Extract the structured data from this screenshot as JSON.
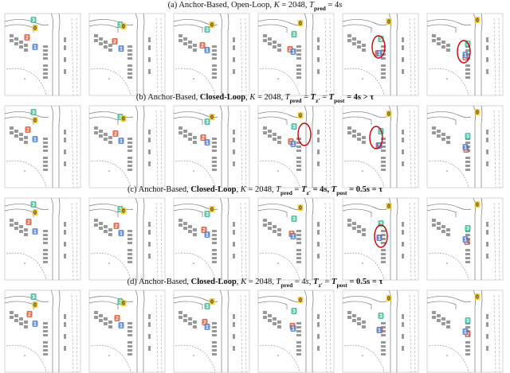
{
  "rows": [
    {
      "caption": [
        {
          "t": "(a) Anchor-Based, Open-Loop, ",
          "f": ""
        },
        {
          "t": "K",
          "f": "i"
        },
        {
          "t": " = 2048, ",
          "f": ""
        },
        {
          "t": "T",
          "f": "i"
        },
        {
          "t": "pred",
          "f": "sub"
        },
        {
          "t": " = 4",
          "f": ""
        },
        {
          "t": "s",
          "f": "i"
        }
      ],
      "panels": [
        [
          "3",
          "0",
          "2",
          "1"
        ],
        [
          "3",
          "0",
          "2",
          "1"
        ],
        [
          "3",
          "0",
          "2",
          "1"
        ],
        [
          "3",
          "0",
          "2",
          "1"
        ],
        [
          "0",
          "3",
          "2",
          "1"
        ],
        [
          "0",
          "3",
          "2",
          "1"
        ]
      ]
    },
    {
      "caption": [
        {
          "t": "(b) Anchor-Based, ",
          "f": ""
        },
        {
          "t": "Closed-Loop",
          "f": "b"
        },
        {
          "t": ", ",
          "f": ""
        },
        {
          "t": "K",
          "f": "i"
        },
        {
          "t": " = 2048, ",
          "f": ""
        },
        {
          "t": "T",
          "f": "i"
        },
        {
          "t": "pred",
          "f": "sub"
        },
        {
          "t": " = ",
          "f": ""
        },
        {
          "t": "T",
          "f": "bi"
        },
        {
          "t": "z'",
          "f": "bsub"
        },
        {
          "t": " = ",
          "f": ""
        },
        {
          "t": "T",
          "f": "bi"
        },
        {
          "t": "post",
          "f": "bsub"
        },
        {
          "t": " = 4s > τ",
          "f": "b"
        }
      ],
      "panels": [
        [
          "3",
          "0",
          "2",
          "1"
        ],
        [
          "3",
          "0",
          "2",
          "1"
        ],
        [
          "3",
          "0",
          "2",
          "1"
        ],
        [
          "3",
          "0",
          "2",
          "1"
        ],
        [
          "0",
          "3",
          "2",
          "1"
        ],
        [
          "0",
          "3",
          "2",
          "1"
        ]
      ]
    },
    {
      "caption": [
        {
          "t": "(c) Anchor-Based, ",
          "f": ""
        },
        {
          "t": "Closed-Loop",
          "f": "b"
        },
        {
          "t": ", ",
          "f": ""
        },
        {
          "t": "K",
          "f": "i"
        },
        {
          "t": " = 2048, ",
          "f": ""
        },
        {
          "t": "T",
          "f": "i"
        },
        {
          "t": "pred",
          "f": "sub"
        },
        {
          "t": " = ",
          "f": ""
        },
        {
          "t": "T",
          "f": "bi"
        },
        {
          "t": "z'",
          "f": "bsub"
        },
        {
          "t": " = 4s, ",
          "f": "b"
        },
        {
          "t": "T",
          "f": "bi"
        },
        {
          "t": "post",
          "f": "bsub"
        },
        {
          "t": " = 0.5s = τ",
          "f": "b"
        }
      ],
      "panels": [
        [
          "3",
          "0",
          "2",
          "1"
        ],
        [
          "3",
          "0",
          "2",
          "1"
        ],
        [
          "3",
          "0",
          "2",
          "1"
        ],
        [
          "0",
          "3",
          "2",
          "1"
        ],
        [
          "0",
          "3",
          "2",
          "1"
        ],
        [
          "0",
          "3",
          "2",
          "1"
        ]
      ]
    },
    {
      "caption": [
        {
          "t": "(d) Anchor-Based, ",
          "f": ""
        },
        {
          "t": "Closed-Loop",
          "f": "b"
        },
        {
          "t": ", ",
          "f": ""
        },
        {
          "t": "K",
          "f": "i"
        },
        {
          "t": " = 2048, ",
          "f": ""
        },
        {
          "t": "T",
          "f": "i"
        },
        {
          "t": "pred",
          "f": "sub"
        },
        {
          "t": " = 4",
          "f": ""
        },
        {
          "t": "s",
          "f": "i"
        },
        {
          "t": ", ",
          "f": ""
        },
        {
          "t": "T",
          "f": "bi"
        },
        {
          "t": "z'",
          "f": "bsub"
        },
        {
          "t": " = ",
          "f": ""
        },
        {
          "t": "T",
          "f": "bi"
        },
        {
          "t": "post",
          "f": "bsub"
        },
        {
          "t": " = 0.5s = τ",
          "f": "b"
        }
      ],
      "panels": [
        [
          "3",
          "0",
          "2",
          "1"
        ],
        [
          "3",
          "0",
          "2",
          "1"
        ],
        [
          "3",
          "0",
          "2",
          "1"
        ],
        [
          "0",
          "3",
          "2",
          "1"
        ],
        [
          "0",
          "3",
          "2",
          "1"
        ],
        [
          "0",
          "3",
          "2",
          "1"
        ]
      ]
    }
  ]
}
